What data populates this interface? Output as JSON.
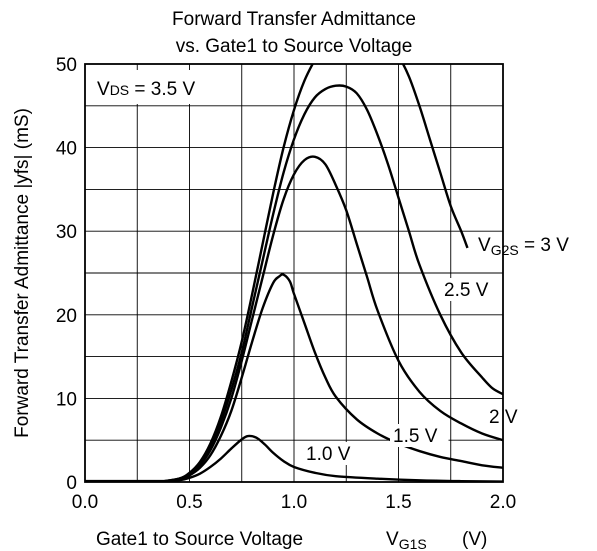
{
  "chart_data": {
    "type": "line",
    "title_line1": "Forward Transfer Admittance",
    "title_line2": "vs. Gate1 to Source Voltage",
    "xlabel": "Gate1 to Source Voltage",
    "xlabel_symbol": "V",
    "xlabel_symbol_sub": "G1S",
    "xlabel_unit": "(V)",
    "ylabel": "Forward Transfer Admittance  |yfs| (mS)",
    "xlim": [
      0,
      2.0
    ],
    "ylim": [
      0,
      50
    ],
    "x_ticks": [
      "0.0",
      "0.5",
      "1.0",
      "1.5",
      "2.0"
    ],
    "y_ticks": [
      "0",
      "10",
      "20",
      "30",
      "40",
      "50"
    ],
    "grid": true,
    "condition_box": {
      "symbol": "V",
      "symbol_sub": "DS",
      "value": " = 3.5 V"
    },
    "series": [
      {
        "name": "1.0 V",
        "label_sym": "",
        "label_sub": "",
        "x": [
          0.35,
          0.45,
          0.5,
          0.55,
          0.6,
          0.65,
          0.7,
          0.75,
          0.78,
          0.82,
          0.86,
          0.9,
          0.95,
          1.0,
          1.1,
          1.2,
          1.4,
          1.6,
          1.8,
          2.0
        ],
        "y": [
          0,
          0.2,
          0.5,
          1.0,
          1.8,
          2.8,
          4.0,
          5.1,
          5.5,
          5.3,
          4.5,
          3.5,
          2.5,
          1.8,
          1.1,
          0.7,
          0.4,
          0.2,
          0.1,
          0.05
        ]
      },
      {
        "name": "1.5 V",
        "label_sym": "",
        "label_sub": "",
        "x": [
          0.35,
          0.45,
          0.5,
          0.55,
          0.6,
          0.65,
          0.7,
          0.75,
          0.8,
          0.85,
          0.9,
          0.93,
          0.95,
          0.98,
          1.0,
          1.05,
          1.1,
          1.15,
          1.2,
          1.3,
          1.4,
          1.5,
          1.6,
          1.7,
          1.8,
          1.9,
          2.0
        ],
        "y": [
          0,
          0.3,
          0.8,
          1.7,
          3.2,
          5.5,
          8.5,
          12.5,
          16.8,
          20.8,
          23.8,
          24.6,
          24.8,
          24.0,
          22.5,
          19.0,
          15.5,
          12.5,
          10.2,
          7.5,
          5.8,
          4.6,
          3.7,
          3.0,
          2.5,
          2.0,
          1.7
        ]
      },
      {
        "name": "2 V",
        "label_sym": "",
        "label_sub": "",
        "x": [
          0.35,
          0.45,
          0.5,
          0.55,
          0.6,
          0.65,
          0.7,
          0.75,
          0.8,
          0.85,
          0.9,
          0.95,
          1.0,
          1.05,
          1.1,
          1.15,
          1.2,
          1.25,
          1.3,
          1.35,
          1.4,
          1.5,
          1.6,
          1.7,
          1.8,
          1.9,
          2.0
        ],
        "y": [
          0,
          0.3,
          0.9,
          2.0,
          3.8,
          6.5,
          10.0,
          14.5,
          19.5,
          24.5,
          29.5,
          33.8,
          36.8,
          38.5,
          38.9,
          38.0,
          35.5,
          32.5,
          28.5,
          24.5,
          20.5,
          14.5,
          10.8,
          8.5,
          7.0,
          5.8,
          5.0
        ]
      },
      {
        "name": "2.5 V",
        "label_sym": "",
        "label_sub": "",
        "x": [
          0.35,
          0.45,
          0.5,
          0.55,
          0.6,
          0.65,
          0.7,
          0.75,
          0.8,
          0.85,
          0.9,
          0.95,
          1.0,
          1.05,
          1.1,
          1.15,
          1.2,
          1.25,
          1.3,
          1.35,
          1.4,
          1.45,
          1.5,
          1.55,
          1.6,
          1.7,
          1.8,
          1.9,
          1.95,
          2.0
        ],
        "y": [
          0,
          0.4,
          1.0,
          2.2,
          4.2,
          7.2,
          11.0,
          15.5,
          21.0,
          26.5,
          32.0,
          37.0,
          41.0,
          44.0,
          46.0,
          47.0,
          47.4,
          47.3,
          46.5,
          44.5,
          41.5,
          38.0,
          34.0,
          30.0,
          26.0,
          20.0,
          15.5,
          12.5,
          11.2,
          10.5
        ]
      },
      {
        "name": "= 3 V",
        "label_sym": "V",
        "label_sub": "G2S",
        "x": [
          0.35,
          0.45,
          0.5,
          0.55,
          0.6,
          0.65,
          0.7,
          0.75,
          0.8,
          0.85,
          0.9,
          0.95,
          1.0,
          1.05,
          1.1,
          1.15,
          1.2,
          1.25,
          1.3,
          1.35,
          1.4,
          1.45,
          1.5,
          1.55,
          1.6,
          1.65,
          1.7,
          1.75,
          1.8,
          1.83
        ],
        "y": [
          0,
          0.4,
          1.1,
          2.4,
          4.6,
          7.8,
          12.0,
          16.8,
          22.5,
          28.5,
          34.5,
          40.0,
          44.5,
          48.0,
          50.5,
          52.5,
          54.0,
          54.8,
          55.0,
          54.8,
          54.0,
          52.8,
          51.0,
          48.5,
          45.0,
          41.0,
          37.0,
          33.0,
          30.0,
          28.0
        ]
      }
    ]
  }
}
